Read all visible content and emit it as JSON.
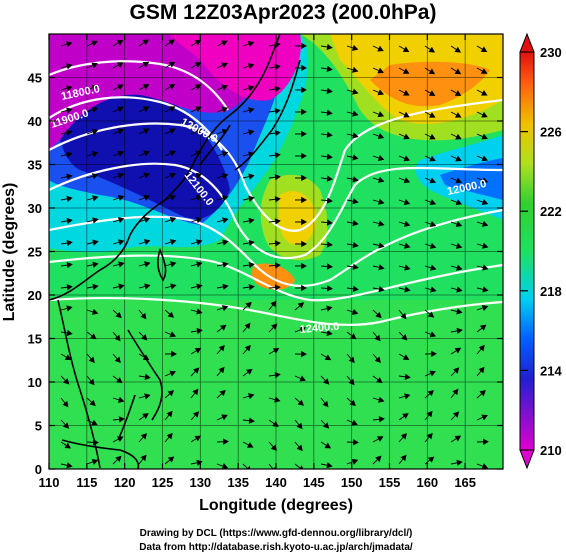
{
  "chart_data": {
    "type": "heatmap",
    "title": "GSM 12Z03Apr2023 (200.0hPa)",
    "xlabel": "Longitude (degrees)",
    "ylabel": "Latitude  (degrees)",
    "xlim": [
      110,
      170
    ],
    "ylim": [
      0,
      50
    ],
    "x_ticks": [
      "110",
      "115",
      "120",
      "125",
      "130",
      "135",
      "140",
      "145",
      "150",
      "155",
      "160",
      "165"
    ],
    "y_ticks": [
      "0",
      "5",
      "10",
      "15",
      "20",
      "25",
      "30",
      "35",
      "40",
      "45"
    ],
    "colorbar": {
      "range": [
        210,
        230
      ],
      "ticks": [
        "210",
        "214",
        "218",
        "222",
        "226",
        "230"
      ]
    },
    "contour_labels": [
      "11800.0",
      "11900.0",
      "12000.0",
      "12100.0",
      "12000.0",
      "12400.0"
    ],
    "grid": true
  },
  "footer": {
    "line1": "Drawing by DCL (https://www.gfd-dennou.org/library/dcl/)",
    "line2": "Data from http://database.rish.kyoto-u.ac.jp/arch/jmadata/"
  }
}
